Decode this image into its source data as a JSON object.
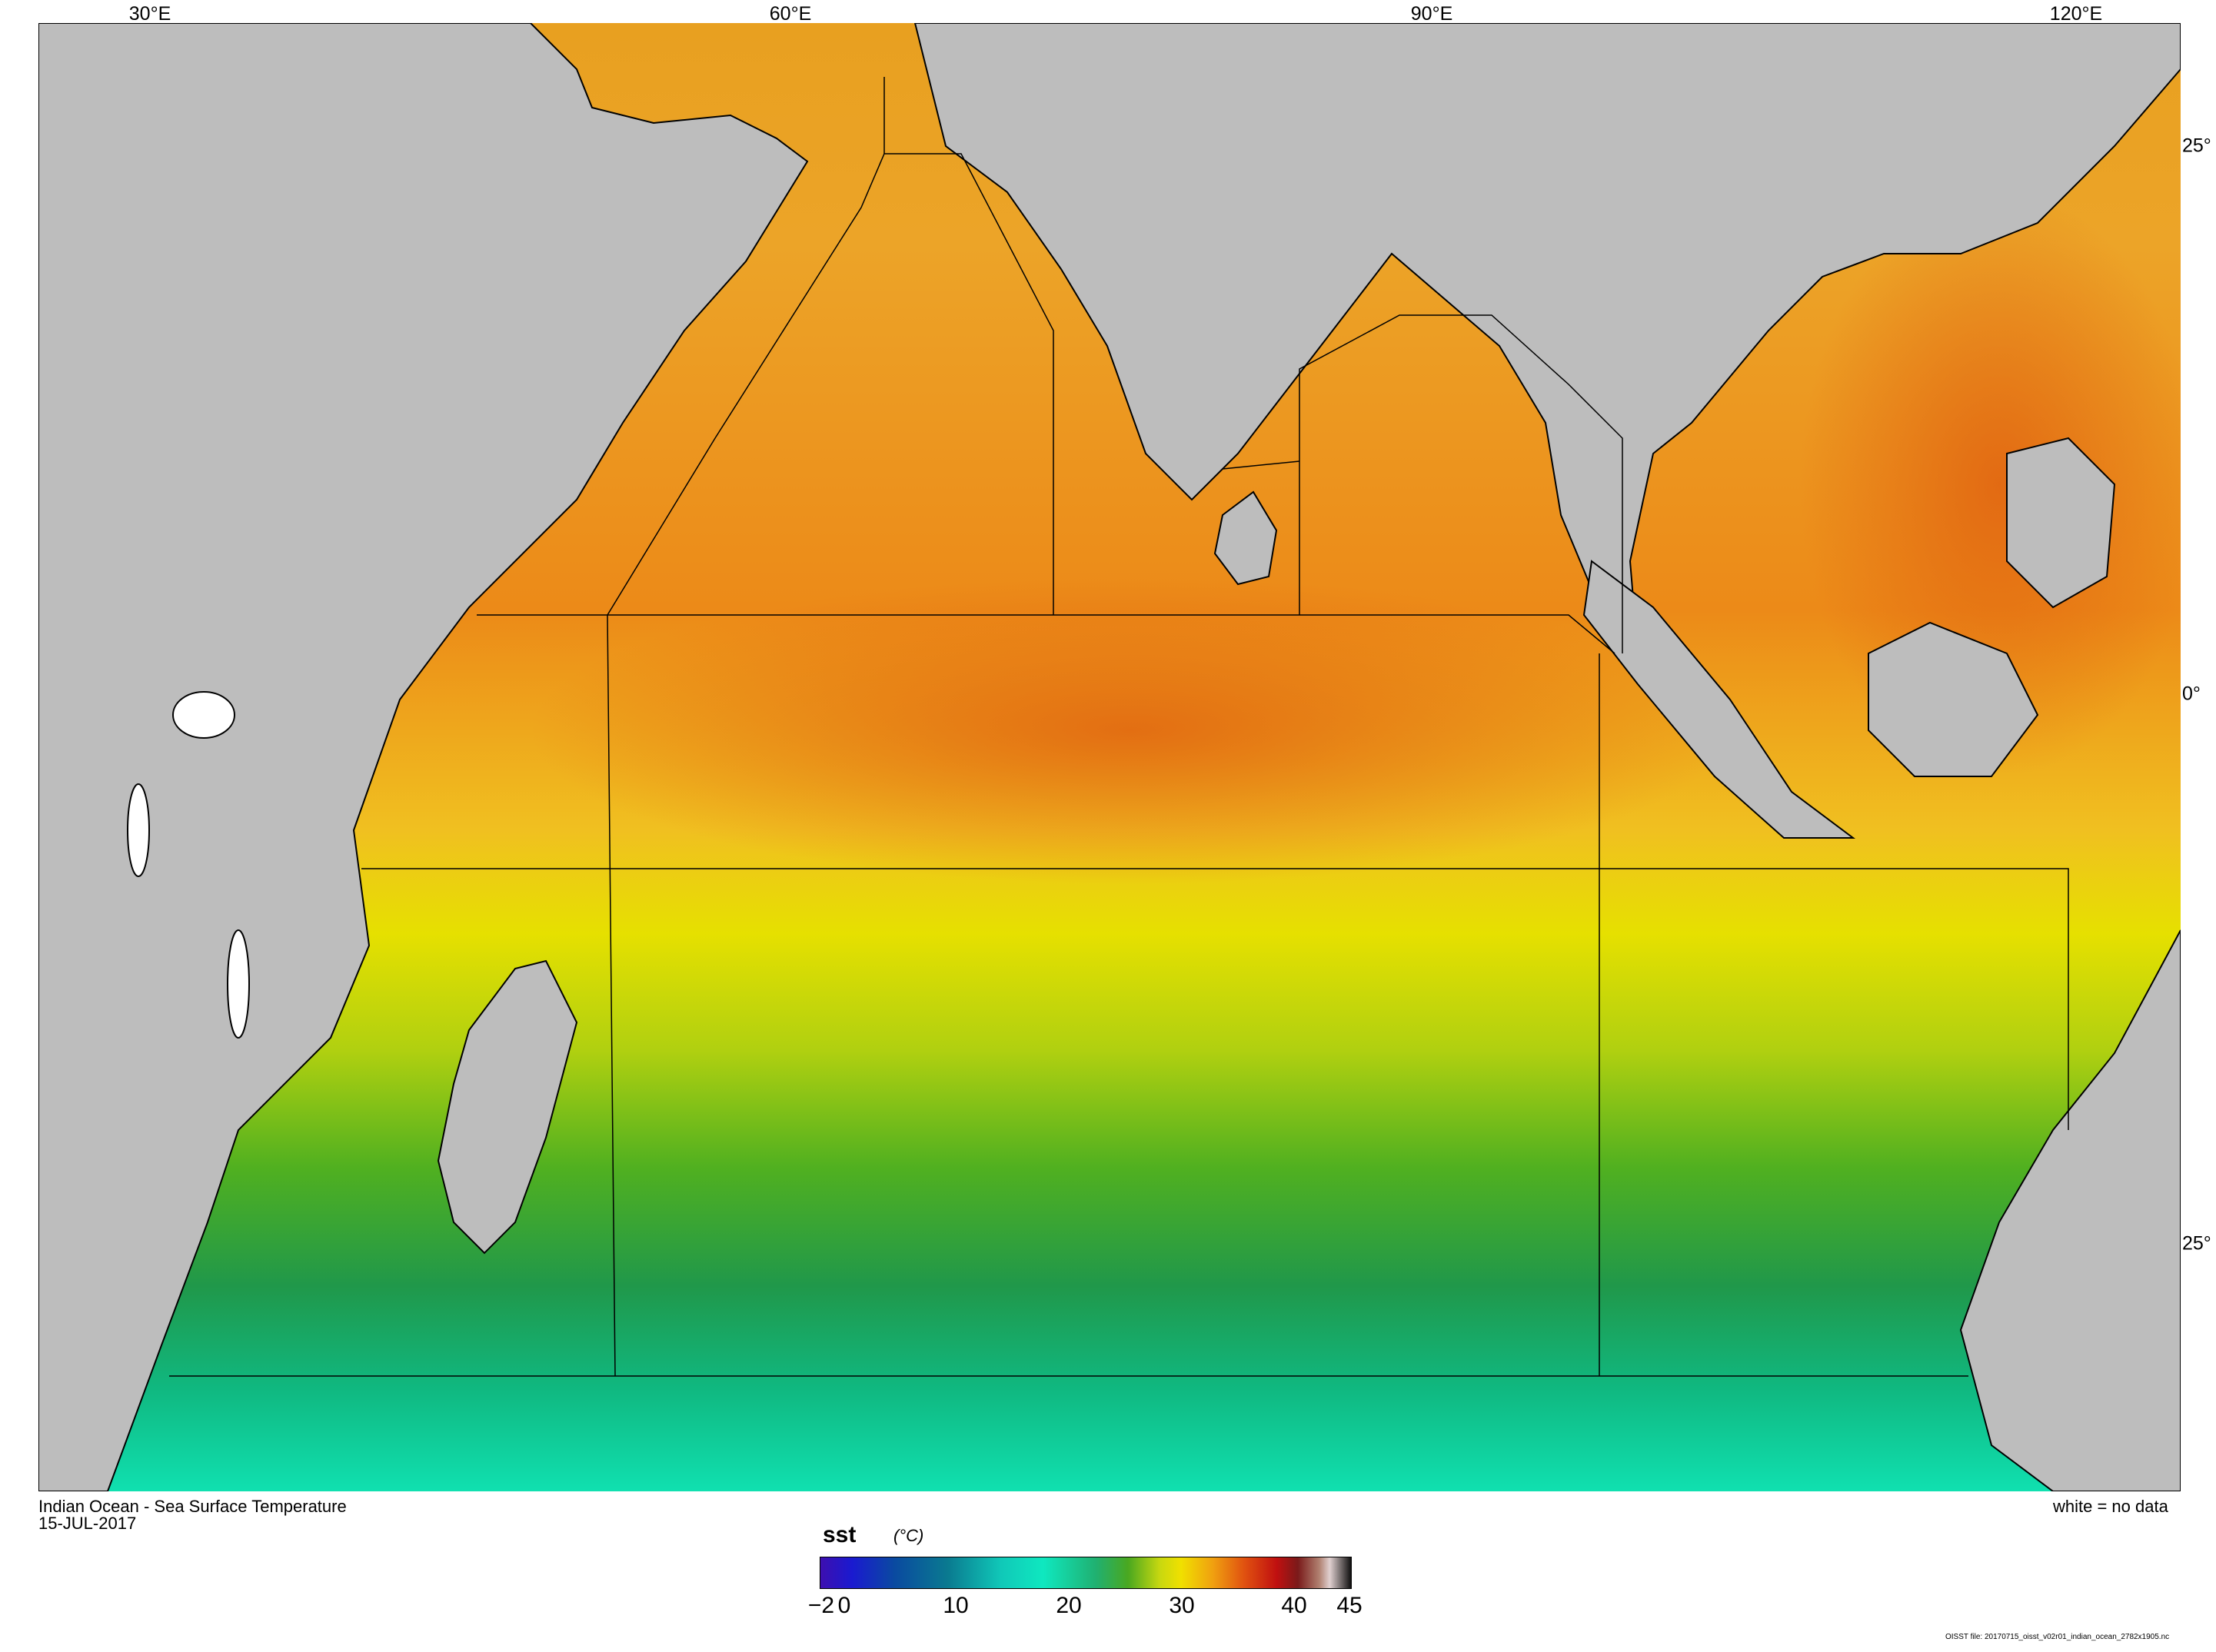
{
  "map": {
    "lon_labels": [
      "30°E",
      "60°E",
      "90°E",
      "120°E"
    ],
    "lat_labels": [
      "25°",
      "0°",
      "25°"
    ],
    "grid_colors": {
      "land": "#bdbdbd",
      "frame": "#000000"
    }
  },
  "captions": {
    "title": "Indian Ocean - Sea Surface Temperature",
    "date": "15-JUL-2017",
    "legend_note": "white = no data",
    "file_note": "OISST file: 20170715_oisst_v02r01_indian_ocean_2782x1905.nc"
  },
  "colorbar": {
    "variable": "sst",
    "unit": "(°C)",
    "ticks": [
      "−2",
      "0",
      "10",
      "20",
      "30",
      "40",
      "45"
    ]
  }
}
